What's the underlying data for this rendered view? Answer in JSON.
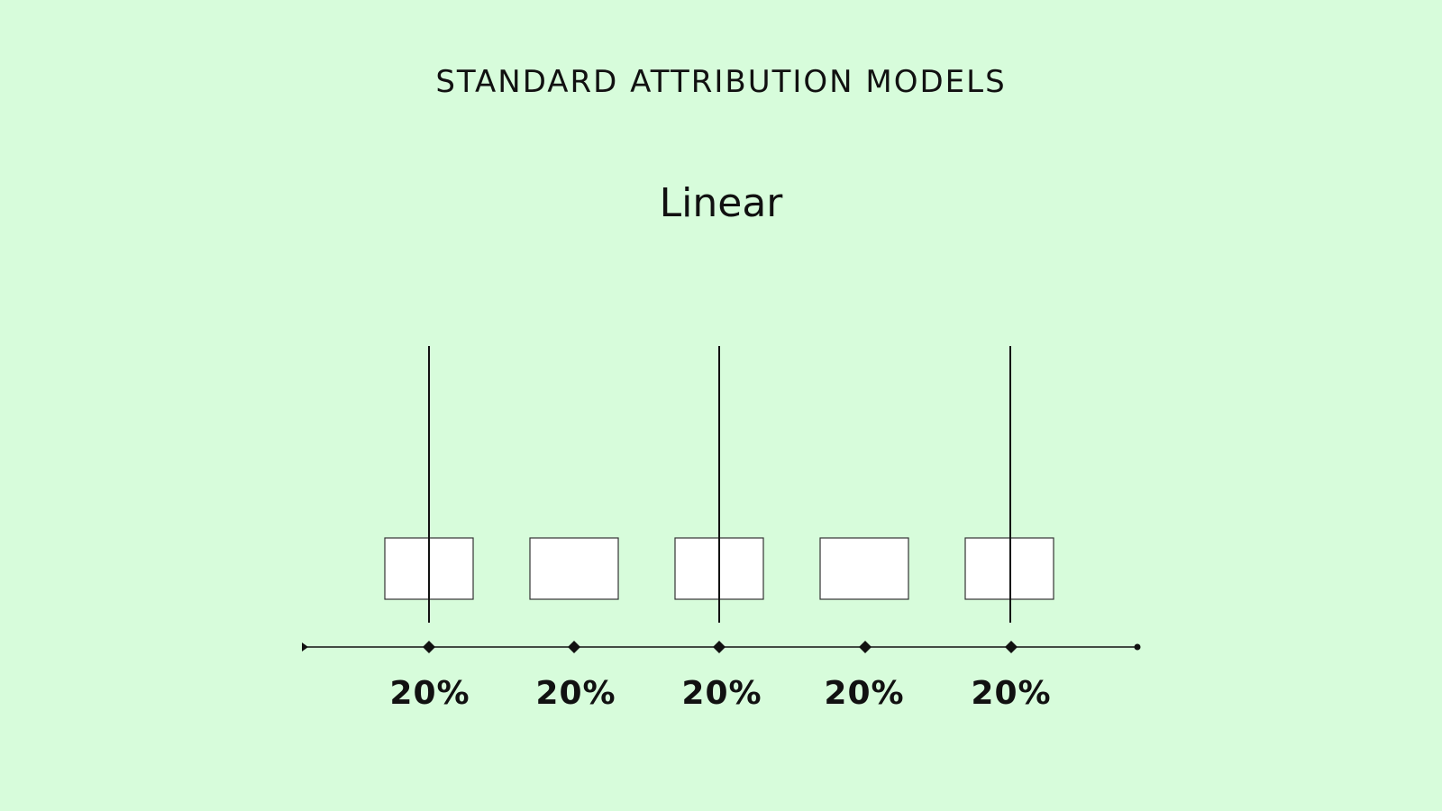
{
  "header": {
    "title": "STANDARD ATTRIBUTION MODELS"
  },
  "model": {
    "name": "Linear",
    "touchpoints": [
      {
        "label": "20%"
      },
      {
        "label": "20%"
      },
      {
        "label": "20%"
      },
      {
        "label": "20%"
      },
      {
        "label": "20%"
      }
    ]
  }
}
